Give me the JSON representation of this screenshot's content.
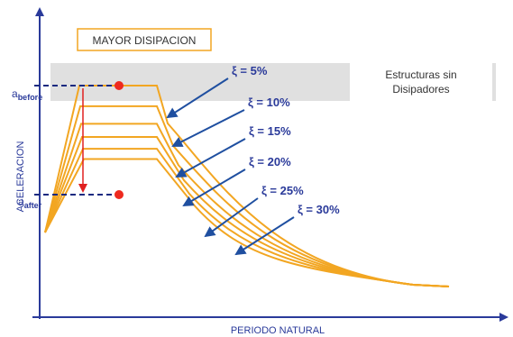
{
  "chart_data": {
    "type": "line",
    "title": "",
    "xlabel": "PERIODO NATURAL",
    "ylabel": "ACELERACION",
    "grid": false,
    "annotations": {
      "mayor_disipacion": "MAYOR DISIPACION",
      "estructuras_line1": "Estructuras sin",
      "estructuras_line2": "Disipadores",
      "a_before": {
        "base": "a",
        "sub": "before"
      },
      "a_after": {
        "base": "a",
        "sub": "after"
      }
    },
    "series": [
      {
        "name": "ξ = 5%",
        "plateau": 1.0
      },
      {
        "name": "ξ = 10%",
        "plateau": 0.86
      },
      {
        "name": "ξ = 15%",
        "plateau": 0.74
      },
      {
        "name": "ξ = 20%",
        "plateau": 0.65
      },
      {
        "name": "ξ = 25%",
        "plateau": 0.57
      },
      {
        "name": "ξ = 30%",
        "plateau": 0.5
      }
    ],
    "colors": {
      "curve": "#f2a622",
      "axis": "#2a3a9a",
      "arrow": "#1f4fa0",
      "marker": "#ee2a1f",
      "drop_arrow": "#e02020",
      "band": "#e0e0e0",
      "box_border": "#f2a622"
    }
  }
}
